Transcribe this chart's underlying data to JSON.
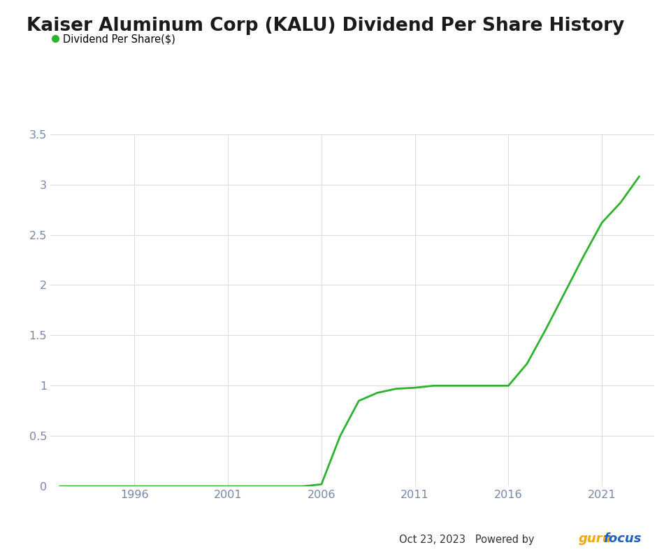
{
  "title": "Kaiser Aluminum Corp (KALU) Dividend Per Share History",
  "legend_label": "Dividend Per Share($)",
  "line_color": "#2db32d",
  "background_color": "#ffffff",
  "grid_color": "#dddddd",
  "title_color": "#1a1a1a",
  "axis_label_color": "#7788aa",
  "ylim": [
    0,
    3.5
  ],
  "yticks": [
    0,
    0.5,
    1.0,
    1.5,
    2.0,
    2.5,
    3.0,
    3.5
  ],
  "xticks": [
    1996,
    2001,
    2006,
    2011,
    2016,
    2021
  ],
  "years": [
    1992,
    1993,
    1994,
    1995,
    1996,
    1997,
    1998,
    1999,
    2000,
    2001,
    2002,
    2003,
    2004,
    2005,
    2006,
    2007,
    2008,
    2009,
    2010,
    2011,
    2012,
    2013,
    2014,
    2015,
    2016,
    2017,
    2018,
    2019,
    2020,
    2021,
    2022,
    2023
  ],
  "dividends": [
    0.0,
    0.0,
    0.0,
    0.0,
    0.0,
    0.0,
    0.0,
    0.0,
    0.0,
    0.0,
    0.0,
    0.0,
    0.0,
    0.0,
    0.02,
    0.5,
    0.85,
    0.93,
    0.97,
    0.98,
    1.0,
    1.0,
    1.0,
    1.0,
    1.0,
    1.22,
    1.56,
    1.92,
    2.28,
    2.62,
    2.82,
    3.08
  ],
  "xmin": 1991.5,
  "xmax": 2023.8,
  "watermark_date": "Oct 23, 2023",
  "watermark_text": "   Powered by ",
  "guru_color": "#f5a800",
  "focus_color": "#2060c0",
  "legend_dot_color": "#2db32d",
  "title_fontsize": 19,
  "legend_fontsize": 10.5,
  "tick_fontsize": 11.5
}
